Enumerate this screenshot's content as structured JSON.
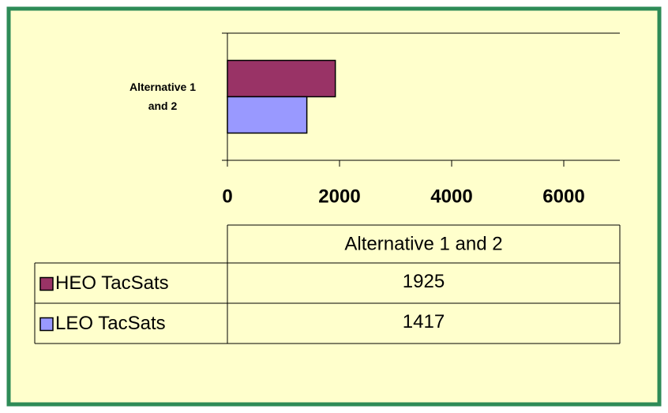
{
  "chart_data": {
    "type": "bar",
    "orientation": "horizontal",
    "categories": [
      "Alternative 1 and 2"
    ],
    "series": [
      {
        "name": "HEO TacSats",
        "color": "#993366",
        "values": [
          1925
        ]
      },
      {
        "name": "LEO TacSats",
        "color": "#9999ff",
        "values": [
          1417
        ]
      }
    ],
    "xlim": [
      0,
      7000
    ],
    "xticks": [
      0,
      2000,
      4000,
      6000
    ],
    "data_table": true
  }
}
